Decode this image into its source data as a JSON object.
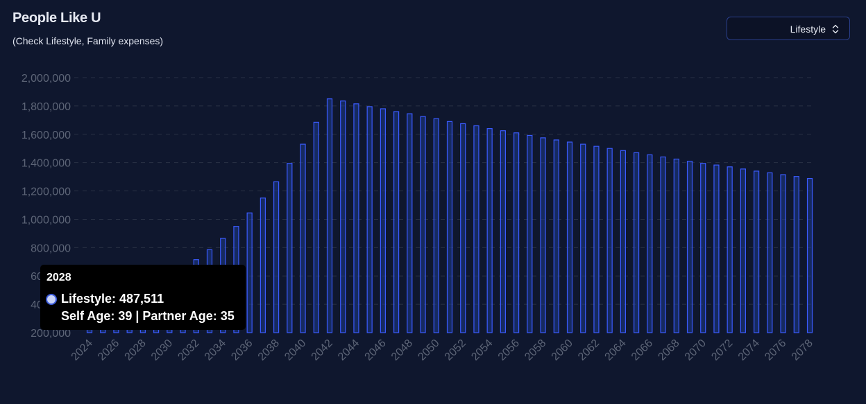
{
  "header": {
    "title": "People Like U",
    "subtitle": "(Check Lifestyle, Family expenses)"
  },
  "selector": {
    "value": "Lifestyle",
    "icon": "chevron-up-down-icon"
  },
  "tooltip": {
    "year": "2028",
    "line1": "Lifestyle: 487,511",
    "line2": "Self Age: 39 | Partner Age: 35"
  },
  "colors": {
    "bar_fill": "#1e3a8a",
    "bar_stroke": "#3b5bff",
    "accent": "#3b5bdb"
  },
  "chart_data": {
    "type": "bar",
    "title": "",
    "xlabel": "",
    "ylabel": "",
    "ylim": [
      200000,
      2000000
    ],
    "y_ticks": [
      200000,
      400000,
      600000,
      800000,
      1000000,
      1200000,
      1400000,
      1600000,
      1800000,
      2000000
    ],
    "y_tick_labels": [
      "200,000",
      "400,000",
      "600,000",
      "800,000",
      "1,000,000",
      "1,200,000",
      "1,400,000",
      "1,600,000",
      "1,800,000",
      "2,000,000"
    ],
    "grid": true,
    "x_tick_labels": [
      "2024",
      "2026",
      "2028",
      "2030",
      "2032",
      "2034",
      "2036",
      "2038",
      "2040",
      "2042",
      "2044",
      "2046",
      "2048",
      "2050",
      "2052",
      "2054",
      "2056",
      "2058",
      "2060",
      "2062",
      "2064",
      "2066",
      "2068",
      "2070",
      "2072",
      "2074",
      "2076",
      "2078"
    ],
    "categories": [
      "2024",
      "2025",
      "2026",
      "2027",
      "2028",
      "2029",
      "2030",
      "2031",
      "2032",
      "2033",
      "2034",
      "2035",
      "2036",
      "2037",
      "2038",
      "2039",
      "2040",
      "2041",
      "2042",
      "2043",
      "2044",
      "2045",
      "2046",
      "2047",
      "2048",
      "2049",
      "2050",
      "2051",
      "2052",
      "2053",
      "2054",
      "2055",
      "2056",
      "2057",
      "2058",
      "2059",
      "2060",
      "2061",
      "2062",
      "2063",
      "2064",
      "2065",
      "2066",
      "2067",
      "2068",
      "2069",
      "2070",
      "2071",
      "2072",
      "2073",
      "2074",
      "2075",
      "2076",
      "2077",
      "2078"
    ],
    "series": [
      {
        "name": "Lifestyle",
        "values": [
          360000,
          390000,
          420000,
          455000,
          487511,
          530000,
          590000,
          650000,
          715000,
          785000,
          865000,
          950000,
          1045000,
          1150000,
          1265000,
          1395000,
          1530000,
          1685000,
          1850000,
          1835000,
          1815000,
          1795000,
          1780000,
          1760000,
          1745000,
          1725000,
          1710000,
          1690000,
          1675000,
          1660000,
          1640000,
          1625000,
          1610000,
          1592000,
          1575000,
          1560000,
          1545000,
          1530000,
          1515000,
          1500000,
          1485000,
          1470000,
          1455000,
          1440000,
          1425000,
          1410000,
          1395000,
          1383000,
          1370000,
          1355000,
          1340000,
          1328000,
          1315000,
          1302000,
          1288000
        ]
      }
    ]
  }
}
